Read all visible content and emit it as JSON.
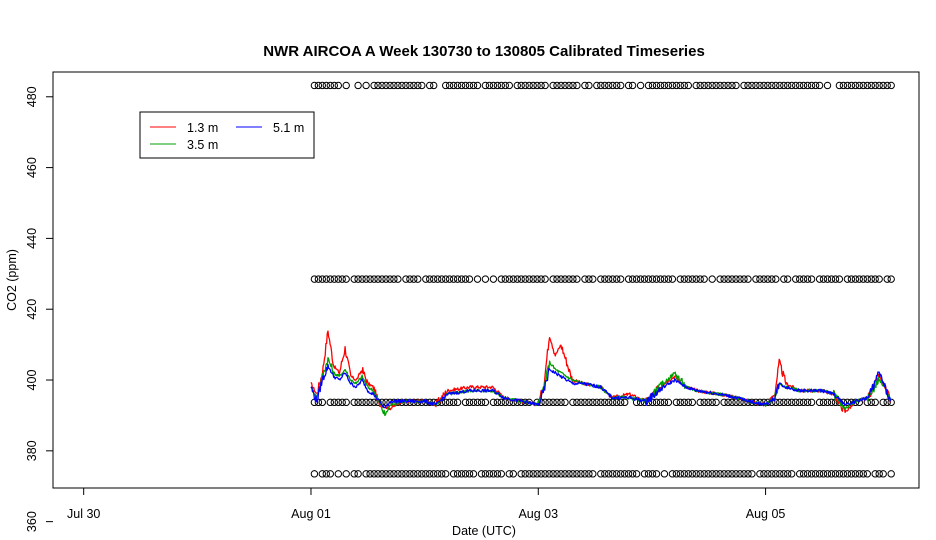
{
  "chart_data": {
    "type": "line",
    "title": "NWR AIRCOA A  Week 130730 to 130805  Calibrated Timeseries",
    "xlabel": "Date (UTC)",
    "ylabel": "CO2 (ppm)",
    "x_ticks": [
      "Jul 30",
      "Aug 01",
      "Aug 03",
      "Aug 05"
    ],
    "y_ticks": [
      360,
      380,
      400,
      420,
      440,
      460,
      480
    ],
    "xlim_days_from_jul30": [
      -0.27,
      7.35
    ],
    "ylim": [
      369.5,
      487
    ],
    "grid": false,
    "legend": {
      "position": "top-left",
      "entries": [
        {
          "name": "1.3 m",
          "color": "#ff0000"
        },
        {
          "name": "3.5 m",
          "color": "#00a000"
        },
        {
          "name": "5.1 m",
          "color": "#0000ff"
        }
      ]
    },
    "calibration_points": {
      "marker": "open-circle",
      "levels_ppm": [
        483.2,
        428.5,
        393.7,
        373.5
      ],
      "x_range": [
        "Aug 01",
        "Aug 06"
      ]
    },
    "series": [
      {
        "name": "1.3 m",
        "color": "#ff0000",
        "points": [
          [
            2.0,
            399
          ],
          [
            2.05,
            396
          ],
          [
            2.1,
            402
          ],
          [
            2.15,
            414
          ],
          [
            2.2,
            404
          ],
          [
            2.25,
            402
          ],
          [
            2.3,
            409
          ],
          [
            2.35,
            401
          ],
          [
            2.4,
            400
          ],
          [
            2.45,
            403
          ],
          [
            2.5,
            399
          ],
          [
            2.55,
            398
          ],
          [
            2.6,
            393
          ],
          [
            2.7,
            392
          ],
          [
            2.8,
            394
          ],
          [
            3.0,
            394
          ],
          [
            3.1,
            393
          ],
          [
            3.2,
            397
          ],
          [
            3.4,
            398
          ],
          [
            3.6,
            398
          ],
          [
            3.7,
            395
          ],
          [
            3.85,
            394
          ],
          [
            4.0,
            393
          ],
          [
            4.05,
            399
          ],
          [
            4.1,
            413
          ],
          [
            4.15,
            407
          ],
          [
            4.2,
            410
          ],
          [
            4.25,
            405
          ],
          [
            4.3,
            400
          ],
          [
            4.4,
            399
          ],
          [
            4.55,
            398
          ],
          [
            4.65,
            395
          ],
          [
            4.8,
            396
          ],
          [
            4.95,
            394
          ],
          [
            5.1,
            399
          ],
          [
            5.2,
            401
          ],
          [
            5.3,
            398
          ],
          [
            5.4,
            397
          ],
          [
            5.6,
            396
          ],
          [
            5.75,
            395
          ],
          [
            5.85,
            394
          ],
          [
            6.0,
            393
          ],
          [
            6.08,
            396
          ],
          [
            6.12,
            405
          ],
          [
            6.18,
            399
          ],
          [
            6.3,
            397
          ],
          [
            6.5,
            397
          ],
          [
            6.6,
            396
          ],
          [
            6.7,
            391
          ],
          [
            6.8,
            394
          ],
          [
            6.9,
            395
          ],
          [
            7.0,
            401
          ],
          [
            7.05,
            398
          ],
          [
            7.1,
            394
          ]
        ]
      },
      {
        "name": "3.5 m",
        "color": "#00a000",
        "points": [
          [
            2.0,
            398
          ],
          [
            2.05,
            395
          ],
          [
            2.1,
            401
          ],
          [
            2.15,
            406
          ],
          [
            2.2,
            402
          ],
          [
            2.25,
            401
          ],
          [
            2.3,
            403
          ],
          [
            2.35,
            400
          ],
          [
            2.4,
            399
          ],
          [
            2.45,
            401
          ],
          [
            2.5,
            398
          ],
          [
            2.55,
            397
          ],
          [
            2.6,
            394
          ],
          [
            2.65,
            390
          ],
          [
            2.7,
            393
          ],
          [
            2.8,
            394
          ],
          [
            3.0,
            394
          ],
          [
            3.1,
            393
          ],
          [
            3.2,
            396
          ],
          [
            3.4,
            397
          ],
          [
            3.6,
            397
          ],
          [
            3.7,
            395
          ],
          [
            3.85,
            394
          ],
          [
            4.0,
            393
          ],
          [
            4.05,
            398
          ],
          [
            4.1,
            405
          ],
          [
            4.15,
            403
          ],
          [
            4.2,
            402
          ],
          [
            4.25,
            401
          ],
          [
            4.3,
            400
          ],
          [
            4.4,
            399
          ],
          [
            4.55,
            398
          ],
          [
            4.65,
            395
          ],
          [
            4.8,
            395
          ],
          [
            4.95,
            394
          ],
          [
            5.1,
            399
          ],
          [
            5.2,
            402
          ],
          [
            5.3,
            398
          ],
          [
            5.4,
            397
          ],
          [
            5.6,
            396
          ],
          [
            5.75,
            395
          ],
          [
            5.85,
            394
          ],
          [
            6.0,
            393
          ],
          [
            6.08,
            395
          ],
          [
            6.12,
            399
          ],
          [
            6.18,
            398
          ],
          [
            6.3,
            397
          ],
          [
            6.5,
            397
          ],
          [
            6.6,
            396
          ],
          [
            6.7,
            392
          ],
          [
            6.8,
            394
          ],
          [
            6.9,
            395
          ],
          [
            7.0,
            400
          ],
          [
            7.05,
            398
          ],
          [
            7.1,
            394
          ]
        ]
      },
      {
        "name": "5.1 m",
        "color": "#0000ff",
        "points": [
          [
            2.0,
            398
          ],
          [
            2.05,
            394
          ],
          [
            2.1,
            400
          ],
          [
            2.15,
            404
          ],
          [
            2.2,
            401
          ],
          [
            2.25,
            400
          ],
          [
            2.3,
            402
          ],
          [
            2.35,
            399
          ],
          [
            2.4,
            398
          ],
          [
            2.45,
            400
          ],
          [
            2.5,
            397
          ],
          [
            2.55,
            396
          ],
          [
            2.6,
            394
          ],
          [
            2.65,
            392
          ],
          [
            2.7,
            394
          ],
          [
            2.8,
            394
          ],
          [
            3.0,
            394
          ],
          [
            3.1,
            393
          ],
          [
            3.2,
            396
          ],
          [
            3.4,
            397
          ],
          [
            3.6,
            397
          ],
          [
            3.7,
            395
          ],
          [
            3.85,
            394
          ],
          [
            4.0,
            393
          ],
          [
            4.05,
            397
          ],
          [
            4.1,
            403
          ],
          [
            4.15,
            402
          ],
          [
            4.2,
            401
          ],
          [
            4.25,
            400
          ],
          [
            4.3,
            399
          ],
          [
            4.4,
            399
          ],
          [
            4.55,
            398
          ],
          [
            4.65,
            395
          ],
          [
            4.8,
            395
          ],
          [
            4.95,
            394
          ],
          [
            5.1,
            398
          ],
          [
            5.2,
            400
          ],
          [
            5.3,
            398
          ],
          [
            5.4,
            397
          ],
          [
            5.6,
            396
          ],
          [
            5.75,
            395
          ],
          [
            5.85,
            394
          ],
          [
            6.0,
            393
          ],
          [
            6.08,
            395
          ],
          [
            6.12,
            399
          ],
          [
            6.18,
            398
          ],
          [
            6.3,
            397
          ],
          [
            6.5,
            397
          ],
          [
            6.6,
            396
          ],
          [
            6.7,
            393
          ],
          [
            6.8,
            394
          ],
          [
            6.9,
            395
          ],
          [
            7.0,
            402
          ],
          [
            7.05,
            398
          ],
          [
            7.1,
            394
          ]
        ]
      }
    ]
  }
}
